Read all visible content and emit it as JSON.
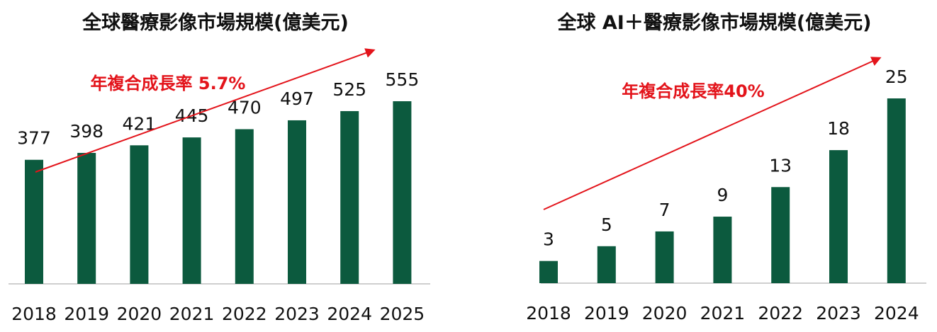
{
  "colors": {
    "bar": "#0c5a3e",
    "arrow": "#e3141b",
    "axis": "#bfbfbf"
  },
  "chart_data": [
    {
      "type": "bar",
      "title": "全球醫療影像市場規模(億美元)",
      "categories": [
        "2018",
        "2019",
        "2020",
        "2021",
        "2022",
        "2023",
        "2024",
        "2025"
      ],
      "values": [
        377,
        398,
        421,
        445,
        470,
        497,
        525,
        555
      ],
      "annotation": "年複合成長率 5.7%",
      "ylim": [
        0,
        600
      ],
      "grid": false,
      "legend": "none"
    },
    {
      "type": "bar",
      "title": "全球 AI＋醫療影像市場規模(億美元)",
      "categories": [
        "2018",
        "2019",
        "2020",
        "2021",
        "2022",
        "2023",
        "2024"
      ],
      "values": [
        3,
        5,
        7,
        9,
        13,
        18,
        25
      ],
      "annotation": "年複合成長率40%",
      "ylim": [
        0,
        28
      ],
      "grid": false,
      "legend": "none"
    }
  ]
}
